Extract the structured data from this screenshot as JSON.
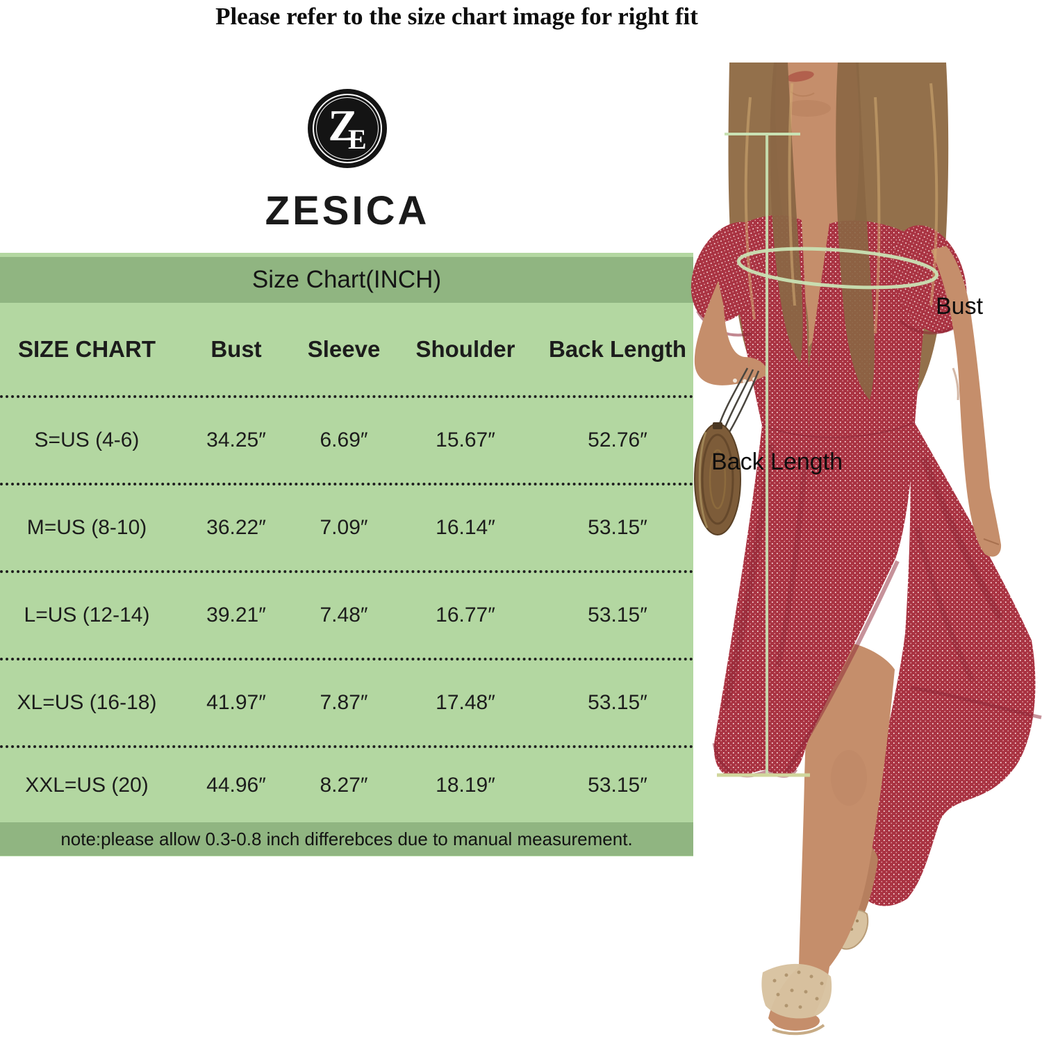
{
  "title": "Please refer to the size chart image for right fit",
  "brand": {
    "name": "ZESICA",
    "monogram_1": "Z",
    "monogram_2": "E"
  },
  "chart_data": {
    "type": "table",
    "title": "Size Chart(INCH)",
    "columns": [
      "SIZE CHART",
      "Bust",
      "Sleeve",
      "Shoulder",
      "Back Length"
    ],
    "rows": [
      [
        "S=US (4-6)",
        "34.25″",
        "6.69″",
        "15.67″",
        "52.76″"
      ],
      [
        "M=US (8-10)",
        "36.22″",
        "7.09″",
        "16.14″",
        "53.15″"
      ],
      [
        "L=US (12-14)",
        "39.21″",
        "7.48″",
        "16.77″",
        "53.15″"
      ],
      [
        "XL=US (16-18)",
        "41.97″",
        "7.87″",
        "17.48″",
        "53.15″"
      ],
      [
        "XXL=US (20)",
        "44.96″",
        "8.27″",
        "18.19″",
        "53.15″"
      ]
    ],
    "note": "note:please allow 0.3-0.8 inch differebces due to manual measurement.",
    "units": "inches",
    "grid": "dotted row separators",
    "legend": "none"
  },
  "annotations": {
    "bust": "Bust",
    "back_length": "Back Length"
  },
  "colors": {
    "table_bg": "#b3d7a1",
    "band_bg": "#90b581",
    "logo_black": "#141414",
    "dress_red": "#a93342",
    "dress_shadow": "#8e2535",
    "measure_green": "#c9e2b4",
    "measure_tick": "#d0d69c",
    "skin": "#c58e6b",
    "skin_shadow": "#a8714f",
    "hair": "#93704b",
    "hair_highlight": "#d4ad74",
    "sandal": "#d8c2a0",
    "bag": "#7d5c39"
  }
}
